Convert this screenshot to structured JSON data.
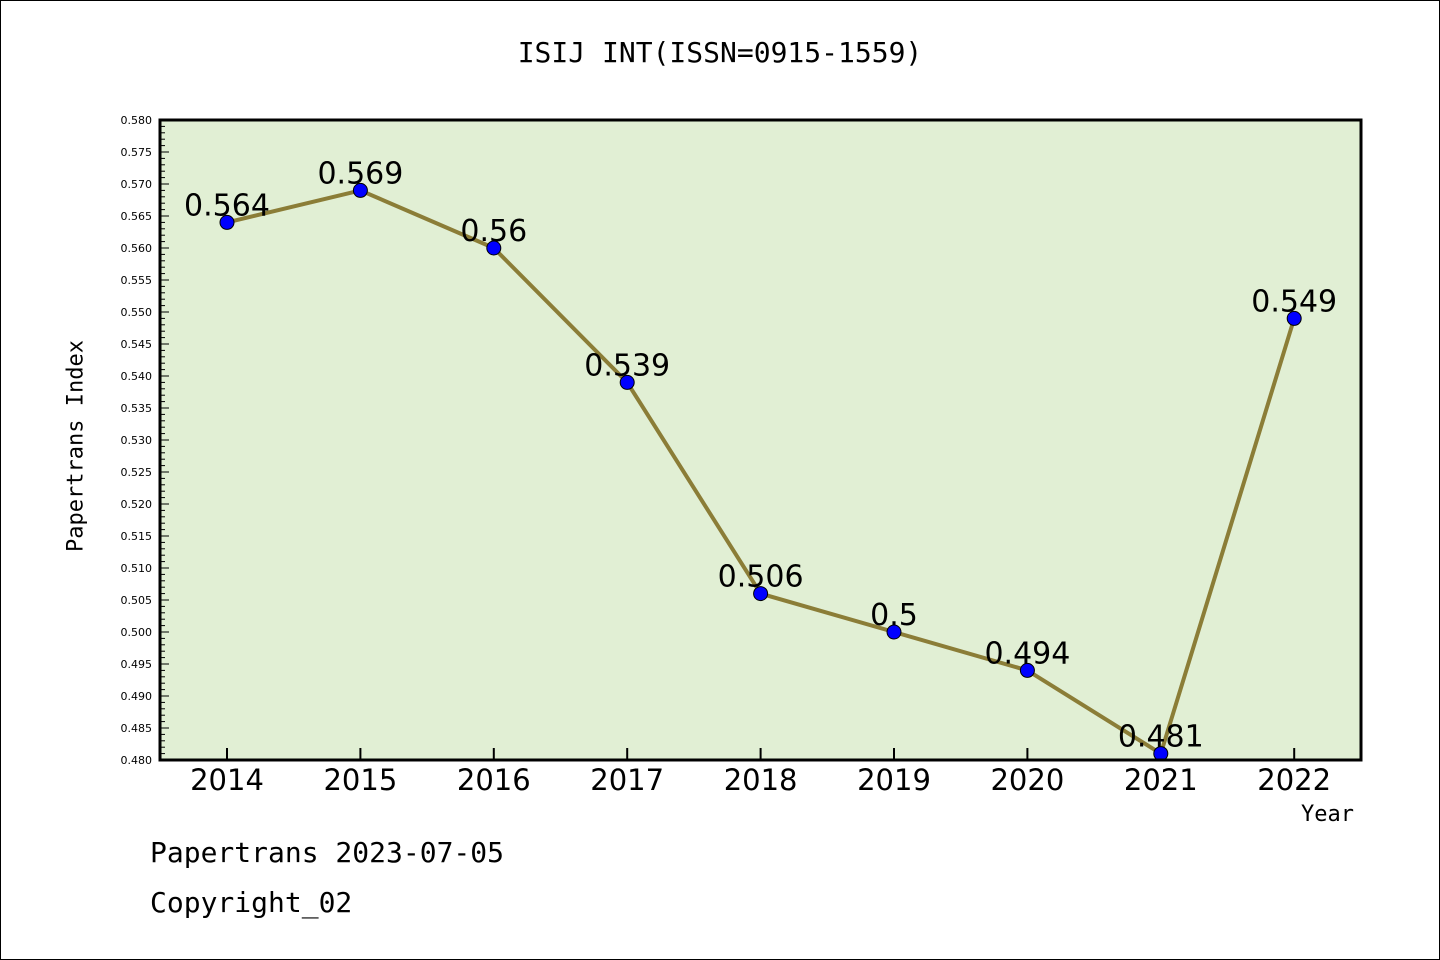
{
  "chart_data": {
    "type": "line",
    "title": "ISIJ INT(ISSN=0915-1559)",
    "xlabel": "Year",
    "ylabel": "Papertrans Index",
    "categories": [
      "2014",
      "2015",
      "2016",
      "2017",
      "2018",
      "2019",
      "2020",
      "2021",
      "2022"
    ],
    "series": [
      {
        "values": [
          0.564,
          0.569,
          0.56,
          0.539,
          0.506,
          0.5,
          0.494,
          0.481,
          0.549
        ],
        "data_labels": [
          "0.564",
          "0.569",
          "0.56",
          "0.539",
          "0.506",
          "0.5",
          "0.494",
          "0.481",
          "0.549"
        ]
      }
    ],
    "ylim": [
      0.48,
      0.58
    ],
    "y_major_step": 0.005,
    "y_tick_labels": [
      "0.480",
      "0.485",
      "0.490",
      "0.495",
      "0.500",
      "0.505",
      "0.510",
      "0.515",
      "0.520",
      "0.525",
      "0.530",
      "0.535",
      "0.540",
      "0.545",
      "0.550",
      "0.555",
      "0.560",
      "0.565",
      "0.570",
      "0.575",
      "0.580"
    ],
    "grid": false,
    "legend": "none",
    "colors": {
      "plot_background": "#e1efd4",
      "line": "#8b7d37",
      "marker": "#0000ff",
      "axis": "#000000"
    }
  },
  "footer": {
    "line1": "Papertrans 2023-07-05",
    "line2": "Copyright_02"
  }
}
